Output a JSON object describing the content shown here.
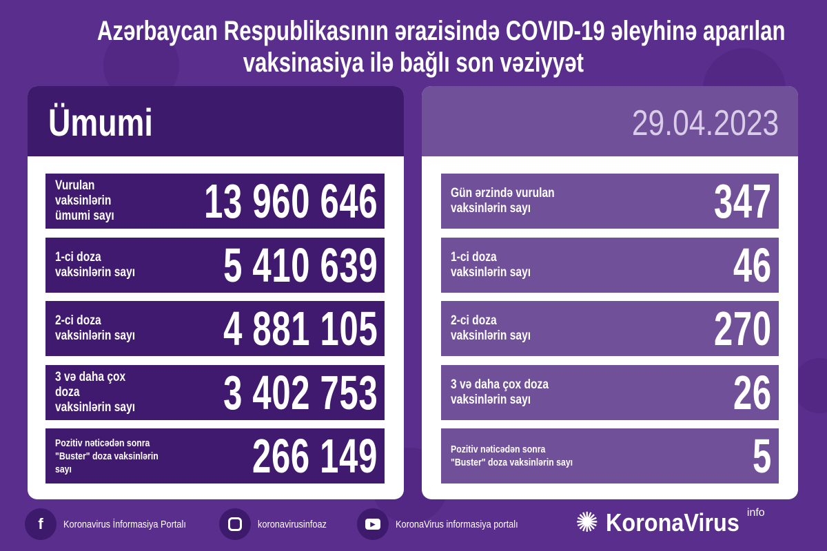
{
  "title": {
    "line1": "Azərbaycan Respublikasının ərazisində COVID-19 əleyhinə aparılan",
    "line2": "vaksinasiya ilə bağlı son vəziyyət"
  },
  "colors": {
    "background": "#5a2e8c",
    "dark_row": "#3f1a6e",
    "light_row": "#71509a",
    "date": "#d9cde8"
  },
  "total": {
    "heading": "Ümumi",
    "rows": [
      {
        "label1": "Vurulan vaksinlərin",
        "label2": "ümumi sayı",
        "value": "13 960 646"
      },
      {
        "label1": "1-ci doza",
        "label2": "vaksinlərin sayı",
        "value": "5 410 639"
      },
      {
        "label1": "2-ci doza",
        "label2": "vaksinlərin sayı",
        "value": "4 881 105"
      },
      {
        "label1": "3 və daha çox doza",
        "label2": "vaksinlərin sayı",
        "value": "3 402 753"
      },
      {
        "label1": "Pozitiv nəticədən sonra",
        "label2": "\"Buster\" doza vaksinlərin sayı",
        "value": "266 149"
      }
    ]
  },
  "daily": {
    "date": "29.04.2023",
    "rows": [
      {
        "label1": "Gün ərzində vurulan",
        "label2": "vaksinlərin sayı",
        "value": "347"
      },
      {
        "label1": "1-ci doza",
        "label2": "vaksinlərin sayı",
        "value": "46"
      },
      {
        "label1": "2-ci doza",
        "label2": "vaksinlərin sayı",
        "value": "270"
      },
      {
        "label1": "3 və daha çox doza",
        "label2": "vaksinlərin sayı",
        "value": "26"
      },
      {
        "label1": "Pozitiv nəticədən sonra",
        "label2": "\"Buster\" doza vaksinlərin sayı",
        "value": "5"
      }
    ]
  },
  "footer": {
    "facebook": {
      "icon": "facebook-icon",
      "text": "Koronavirus İnformasiya Portalı"
    },
    "instagram": {
      "icon": "instagram-icon",
      "text": "koronavirusinfoaz"
    },
    "youtube": {
      "icon": "youtube-icon",
      "text": "KoronaVirus informasiya portalı"
    },
    "logo": {
      "name": "KoronaVirus",
      "sup": "info"
    }
  }
}
